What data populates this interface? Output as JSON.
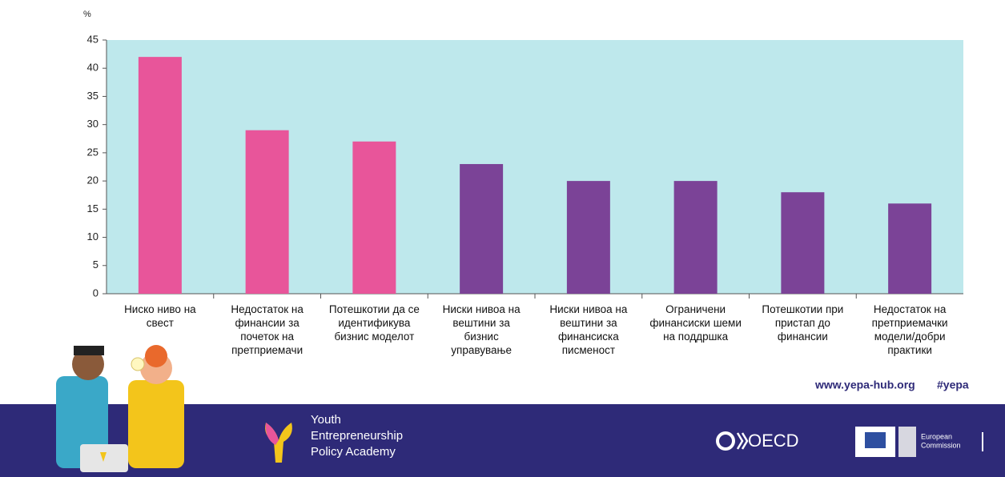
{
  "chart_data": {
    "type": "bar",
    "y_unit": "%",
    "categories": [
      "Ниско ниво на свест",
      "Недостаток на финансии за почеток на претприемачи",
      "Потешкотии да се идентификува бизнис моделот",
      "Ниски нивоа на вештини за бизнис управување",
      "Ниски нивоа на вештини за финансиска писменост",
      "Ограничени финансиски шеми на поддршка",
      "Потешкотии при пристап до финансии",
      "Недостаток на претприемачки модели/добри практики"
    ],
    "values": [
      42,
      29,
      27,
      23,
      20,
      20,
      18,
      16
    ],
    "colors": [
      "#e8559a",
      "#e8559a",
      "#e8559a",
      "#7b4397",
      "#7b4397",
      "#7b4397",
      "#7b4397",
      "#7b4397"
    ],
    "ylim": [
      0,
      45
    ],
    "yticks": [
      0,
      5,
      10,
      15,
      20,
      25,
      30,
      35,
      40,
      45
    ],
    "plot_background": "#bee8ec"
  },
  "footer": {
    "website": "www.yepa-hub.org",
    "hashtag": "#yepa",
    "brand_lines": [
      "Youth",
      "Entrepreneurship",
      "Policy Academy"
    ],
    "oecd": "OECD",
    "ec_lines": [
      "European",
      "Commission"
    ]
  }
}
